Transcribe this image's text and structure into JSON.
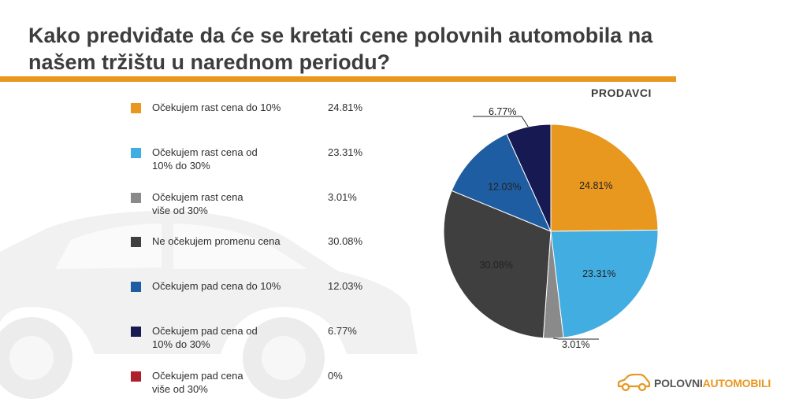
{
  "title": "Kako predviđate da će se kretati cene polovnih automobila na našem tržištu u narednom periodu?",
  "pie_title": "PRODAVCI",
  "logo": {
    "part1": "POLOVNI",
    "part2": "AUTOMOBILI",
    "icon": "car-outline-icon"
  },
  "colors": {
    "accent": "#e8971f"
  },
  "legend": [
    {
      "label": "Očekujem rast cena do 10%",
      "pct": "24.81%",
      "color": "#e8971f"
    },
    {
      "label": "Očekujem rast cena od 10% do 30%",
      "pct": "23.31%",
      "color": "#42ade0"
    },
    {
      "label": "Očekujem rast cena više od 30%",
      "pct": "3.01%",
      "color": "#8a8a8a"
    },
    {
      "label": "Ne očekujem promenu cena",
      "pct": "30.08%",
      "color": "#3f3f3f"
    },
    {
      "label": "Očekujem pad cena do 10%",
      "pct": "12.03%",
      "color": "#1f5da3"
    },
    {
      "label": "Očekujem pad cena od 10% do 30%",
      "pct": "6.77%",
      "color": "#171a52"
    },
    {
      "label": "Očekujem pad cena više od 30%",
      "pct": "0%",
      "color": "#b0202a"
    }
  ],
  "chart_data": {
    "type": "pie",
    "title": "PRODAVCI",
    "categories": [
      "Očekujem rast cena do 10%",
      "Očekujem rast cena od 10% do 30%",
      "Očekujem rast cena više od 30%",
      "Ne očekujem promenu cena",
      "Očekujem pad cena do 10%",
      "Očekujem pad cena od 10% do 30%",
      "Očekujem pad cena više od 30%"
    ],
    "values": [
      24.81,
      23.31,
      3.01,
      30.08,
      12.03,
      6.77,
      0
    ],
    "slice_labels": [
      "24.81%",
      "23.31%",
      "3.01%",
      "30.08%",
      "12.03%",
      "6.77%",
      "0%"
    ],
    "colors": [
      "#e8971f",
      "#42ade0",
      "#8a8a8a",
      "#3f3f3f",
      "#1f5da3",
      "#171a52",
      "#b0202a"
    ],
    "start": "12 o'clock",
    "direction": "clockwise"
  }
}
